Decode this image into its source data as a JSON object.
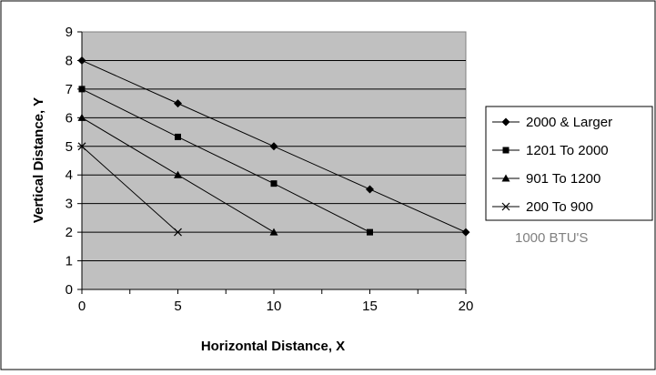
{
  "chart_data": {
    "type": "line",
    "title": "",
    "xlabel": "Horizontal Distance, X",
    "ylabel": "Vertical Distance, Y",
    "xlim": [
      0,
      20
    ],
    "ylim": [
      0,
      9
    ],
    "x_ticks": [
      0,
      5,
      10,
      15,
      20
    ],
    "y_ticks": [
      0,
      1,
      2,
      3,
      4,
      5,
      6,
      7,
      8,
      9
    ],
    "grid": "horizontal",
    "plot_background": "#c0c0c0",
    "line_color": "#000000",
    "legend_position": "right",
    "annotation": "1000 BTU'S",
    "series": [
      {
        "name": "2000 & Larger",
        "marker": "diamond",
        "points": [
          [
            0,
            8
          ],
          [
            5,
            6.5
          ],
          [
            10,
            5
          ],
          [
            15,
            3.5
          ],
          [
            20,
            2
          ]
        ]
      },
      {
        "name": "1201 To 2000",
        "marker": "square",
        "points": [
          [
            0,
            7
          ],
          [
            5,
            5.33
          ],
          [
            10,
            3.7
          ],
          [
            15,
            2
          ]
        ]
      },
      {
        "name": "901 To 1200",
        "marker": "triangle",
        "points": [
          [
            0,
            6
          ],
          [
            5,
            4
          ],
          [
            10,
            2
          ]
        ]
      },
      {
        "name": "200 To 900",
        "marker": "x",
        "points": [
          [
            0,
            5
          ],
          [
            5,
            2
          ]
        ]
      }
    ]
  }
}
